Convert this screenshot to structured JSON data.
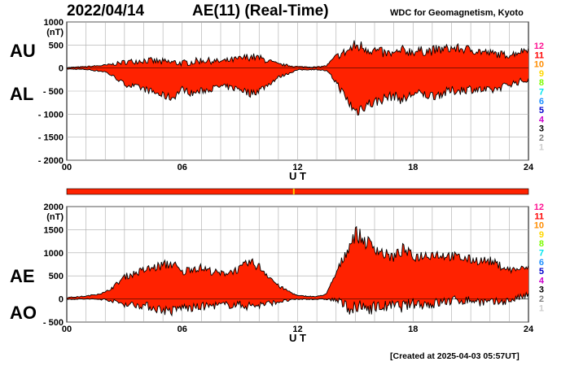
{
  "header": {
    "date": "2022/04/14",
    "title": "AE(11) (Real-Time)",
    "org": "WDC for Geomagnetism, Kyoto",
    "footer": "[Created at 2025-04-03 05:57UT]"
  },
  "labels": {
    "au": "AU",
    "al": "AL",
    "ae": "AE",
    "ao": "AO"
  },
  "colors": {
    "fill": "#ff2200",
    "line": "#000000",
    "grid": "#aaaaaa",
    "bar": "#ff2200",
    "bar_mark": "#ffcc00"
  },
  "legend": [
    {
      "label": "12",
      "color": "#ff1493"
    },
    {
      "label": "11",
      "color": "#ff0000"
    },
    {
      "label": "10",
      "color": "#ff8c00"
    },
    {
      "label": "9",
      "color": "#ffd700"
    },
    {
      "label": "8",
      "color": "#7cfc00"
    },
    {
      "label": "7",
      "color": "#00e5ee"
    },
    {
      "label": "6",
      "color": "#1e90ff"
    },
    {
      "label": "5",
      "color": "#0000cd"
    },
    {
      "label": "4",
      "color": "#cc00cc"
    },
    {
      "label": "3",
      "color": "#000000"
    },
    {
      "label": "2",
      "color": "#808080"
    },
    {
      "label": "1",
      "color": "#cccccc"
    }
  ],
  "station_bar": {
    "mark_hour": 11.8
  },
  "chart_data": [
    {
      "type": "area",
      "panel": "AU/AL",
      "xlabel": "U T",
      "ylabel_unit": "(nT)",
      "xlim": [
        0,
        24
      ],
      "ylim": [
        -2000,
        1000
      ],
      "xticks": [
        "00",
        "06",
        "12",
        "18",
        "24"
      ],
      "yticks": [
        "1000",
        "500",
        "0",
        "- 500",
        "- 1000",
        "- 1500",
        "- 2000"
      ],
      "ytick_values": [
        1000,
        500,
        0,
        -500,
        -1000,
        -1500,
        -2000
      ],
      "x": [
        0,
        1,
        2,
        2.5,
        3,
        4,
        5,
        5.5,
        6,
        6.5,
        7,
        8,
        9,
        9.5,
        10,
        10.5,
        11,
        12,
        13,
        13.5,
        14,
        14.5,
        15,
        15.5,
        16,
        16.5,
        17,
        17.5,
        18,
        19,
        20,
        21,
        22,
        23,
        23.5,
        24
      ],
      "series": [
        {
          "key": "AU",
          "values": [
            10,
            30,
            60,
            90,
            130,
            170,
            130,
            120,
            110,
            130,
            170,
            140,
            200,
            250,
            220,
            150,
            80,
            30,
            20,
            50,
            250,
            350,
            480,
            450,
            380,
            320,
            300,
            380,
            360,
            380,
            430,
            400,
            320,
            280,
            350,
            420
          ]
        },
        {
          "key": "AL",
          "values": [
            -20,
            -30,
            -80,
            -200,
            -350,
            -450,
            -600,
            -650,
            -450,
            -550,
            -500,
            -400,
            -450,
            -550,
            -480,
            -350,
            -200,
            -40,
            -30,
            -60,
            -300,
            -650,
            -950,
            -800,
            -750,
            -650,
            -600,
            -700,
            -550,
            -600,
            -500,
            -450,
            -500,
            -350,
            -300,
            -250
          ]
        }
      ]
    },
    {
      "type": "area",
      "panel": "AE/AO",
      "xlabel": "U T",
      "ylabel_unit": "(nT)",
      "xlim": [
        0,
        24
      ],
      "ylim": [
        -500,
        2000
      ],
      "xticks": [
        "00",
        "06",
        "12",
        "18",
        "24"
      ],
      "yticks": [
        "2000",
        "1500",
        "1000",
        "500",
        "0",
        "- 500"
      ],
      "ytick_values": [
        2000,
        1500,
        1000,
        500,
        0,
        -500
      ],
      "x": [
        0,
        1,
        2,
        2.5,
        3,
        4,
        5,
        5.5,
        6,
        6.5,
        7,
        8,
        9,
        9.5,
        10,
        10.5,
        11,
        12,
        13,
        13.5,
        14,
        14.5,
        15,
        15.5,
        16,
        16.5,
        17,
        17.5,
        18,
        19,
        20,
        21,
        22,
        23,
        23.5,
        24
      ],
      "series": [
        {
          "key": "AE",
          "values": [
            30,
            60,
            140,
            290,
            480,
            620,
            730,
            770,
            560,
            680,
            670,
            540,
            650,
            800,
            700,
            500,
            280,
            70,
            50,
            110,
            550,
            1000,
            1430,
            1250,
            1130,
            970,
            900,
            1080,
            910,
            980,
            930,
            850,
            820,
            630,
            650,
            670
          ]
        },
        {
          "key": "AO",
          "values": [
            -5,
            0,
            -10,
            -55,
            -110,
            -140,
            -235,
            -265,
            -170,
            -210,
            -165,
            -130,
            -125,
            -150,
            -130,
            -100,
            -60,
            -5,
            -5,
            -5,
            -25,
            -150,
            -235,
            -175,
            -185,
            -165,
            -150,
            -160,
            -95,
            -110,
            -35,
            -25,
            -90,
            -35,
            25,
            85
          ]
        }
      ]
    }
  ]
}
